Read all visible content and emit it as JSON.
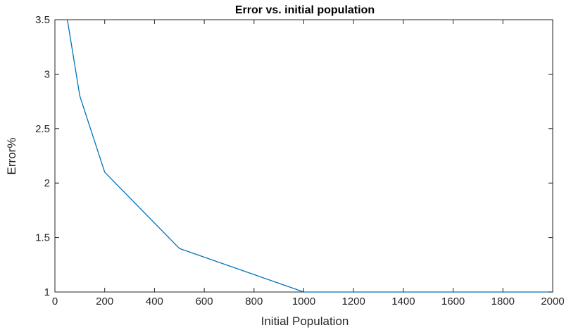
{
  "colors": {
    "series": "#0072BD",
    "axis": "#262626"
  },
  "chart_data": {
    "type": "line",
    "title": "Error vs. initial population",
    "xlabel": "Initial Population",
    "ylabel": "Error%",
    "xlim": [
      0,
      2000
    ],
    "ylim": [
      1,
      3.5
    ],
    "xticks": [
      0,
      200,
      400,
      600,
      800,
      1000,
      1200,
      1400,
      1600,
      1800,
      2000
    ],
    "xtick_labels": [
      "0",
      "200",
      "400",
      "600",
      "800",
      "1000",
      "1200",
      "1400",
      "1600",
      "1800",
      "2000"
    ],
    "yticks": [
      1,
      1.5,
      2,
      2.5,
      3,
      3.5
    ],
    "ytick_labels": [
      "1",
      "1.5",
      "2",
      "2.5",
      "3",
      "3.5"
    ],
    "grid": false,
    "series": [
      {
        "x": [
          50,
          100,
          200,
          500,
          1000,
          1500,
          2000
        ],
        "values": [
          3.5,
          2.8,
          2.1,
          1.4,
          1.0,
          1.0,
          1.0
        ]
      }
    ]
  }
}
